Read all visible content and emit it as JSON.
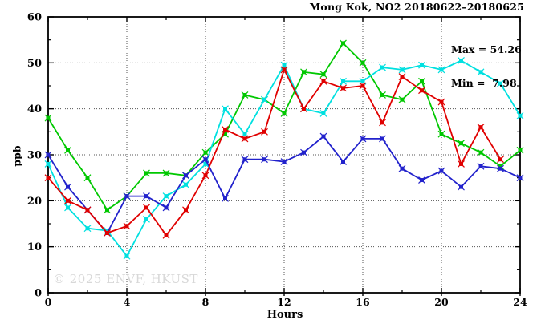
{
  "title": "Mong Kok, NO2 20180622–20180625",
  "annotations": {
    "max_label": "Max = 54.26",
    "min_label": "Min =  7.98"
  },
  "watermark": "© 2025 ENVF, HKUST",
  "chart_data": {
    "type": "line",
    "title": "Mong Kok, NO2 20180622–20180625",
    "xlabel": "Hours",
    "ylabel": "ppb",
    "xlim": [
      0,
      24
    ],
    "ylim": [
      0,
      60
    ],
    "x_major_ticks": [
      0,
      4,
      8,
      12,
      16,
      20,
      24
    ],
    "x_minor_step": 2,
    "y_major_ticks": [
      0,
      10,
      20,
      30,
      40,
      50,
      60
    ],
    "y_minor_step": 5,
    "grid": true,
    "legend_position": "none",
    "marker": "square-with-x",
    "max": 54.26,
    "min": 7.98,
    "series": [
      {
        "name": "green",
        "color": "#00c800",
        "x": [
          0,
          1,
          2,
          3,
          4,
          5,
          6,
          7,
          8,
          9,
          10,
          11,
          12,
          13,
          14,
          15,
          16,
          17,
          18,
          19,
          20,
          21,
          22,
          23,
          24
        ],
        "values": [
          38,
          31,
          25,
          18,
          21,
          26,
          26,
          25.5,
          30.5,
          34.5,
          43,
          42,
          39,
          48,
          47.5,
          54.26,
          50,
          43,
          42,
          46,
          34.5,
          32.5,
          30.5,
          27.5,
          31
        ]
      },
      {
        "name": "cyan",
        "color": "#00e0e0",
        "x": [
          0,
          1,
          2,
          3,
          4,
          5,
          6,
          7,
          8,
          9,
          10,
          11,
          12,
          13,
          14,
          15,
          16,
          17,
          18,
          19,
          20,
          21,
          22,
          23,
          24
        ],
        "values": [
          28,
          18.5,
          14,
          13.5,
          7.98,
          16,
          21,
          23.5,
          28,
          40,
          34.5,
          42,
          49.5,
          40,
          39,
          46,
          46,
          49,
          48.5,
          49.5,
          48.5,
          50.5,
          48,
          45.5,
          38.5
        ]
      },
      {
        "name": "blue",
        "color": "#2222cc",
        "x": [
          0,
          1,
          2,
          3,
          4,
          5,
          6,
          7,
          8,
          9,
          10,
          11,
          12,
          13,
          14,
          15,
          16,
          17,
          18,
          19,
          20,
          21,
          22,
          23,
          24
        ],
        "values": [
          30,
          23,
          18,
          13,
          21,
          21,
          18.5,
          25.5,
          29,
          20.5,
          29,
          29,
          28.5,
          30.5,
          34,
          28.5,
          33.5,
          33.5,
          27,
          24.5,
          26.5,
          23,
          27.5,
          27,
          25
        ]
      },
      {
        "name": "red",
        "color": "#e00000",
        "x": [
          0,
          1,
          2,
          3,
          4,
          5,
          6,
          7,
          8,
          9,
          10,
          11,
          12,
          13,
          14,
          15,
          16,
          17,
          18,
          19,
          20,
          21,
          22,
          23
        ],
        "values": [
          25,
          20,
          18,
          13,
          14.5,
          18.5,
          12.5,
          18,
          25.5,
          35.5,
          33.5,
          35,
          48.5,
          40,
          46,
          44.5,
          45,
          37,
          47,
          44,
          41.5,
          28,
          36,
          29
        ]
      }
    ]
  }
}
